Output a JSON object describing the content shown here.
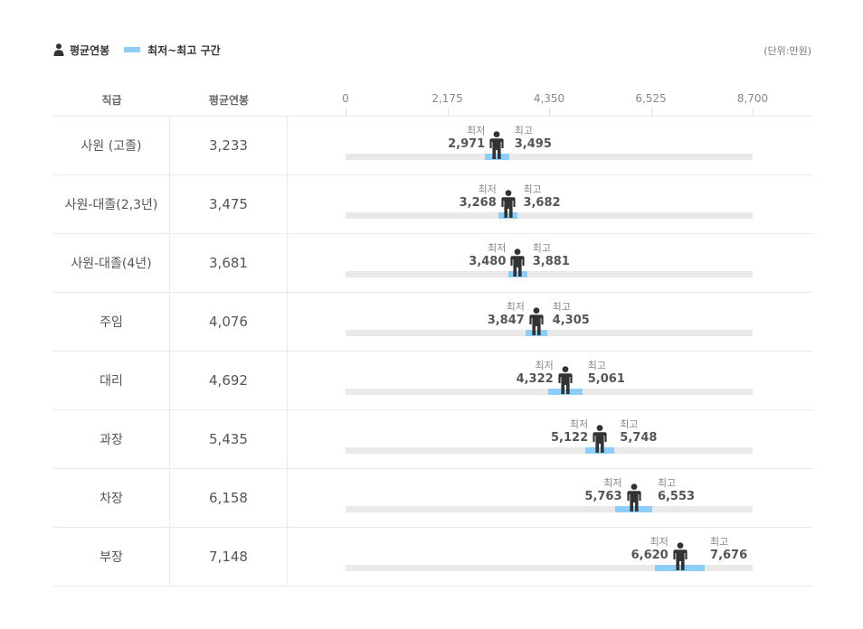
{
  "legend": {
    "average_label": "평균연봉",
    "range_label": "최저~최고 구간",
    "unit": "(단위:만원)"
  },
  "headers": {
    "grade": "직급",
    "avg": "평균연봉"
  },
  "labels": {
    "min": "최저",
    "max": "최고"
  },
  "colors": {
    "range": "#8dcdf7",
    "track": "#e9e9e9",
    "figure": "#333333"
  },
  "chart_data": {
    "type": "table",
    "xlim": [
      0,
      8700
    ],
    "ticks": [
      "0",
      "2,175",
      "4,350",
      "6,525",
      "8,700"
    ],
    "tick_values": [
      0,
      2175,
      4350,
      6525,
      8700
    ],
    "rows": [
      {
        "grade": "사원 (고졸)",
        "avg": 3233,
        "avg_label": "3,233",
        "min": 2971,
        "min_label": "2,971",
        "max": 3495,
        "max_label": "3,495"
      },
      {
        "grade": "사원-대졸(2,3년)",
        "avg": 3475,
        "avg_label": "3,475",
        "min": 3268,
        "min_label": "3,268",
        "max": 3682,
        "max_label": "3,682"
      },
      {
        "grade": "사원-대졸(4년)",
        "avg": 3681,
        "avg_label": "3,681",
        "min": 3480,
        "min_label": "3,480",
        "max": 3881,
        "max_label": "3,881"
      },
      {
        "grade": "주임",
        "avg": 4076,
        "avg_label": "4,076",
        "min": 3847,
        "min_label": "3,847",
        "max": 4305,
        "max_label": "4,305"
      },
      {
        "grade": "대리",
        "avg": 4692,
        "avg_label": "4,692",
        "min": 4322,
        "min_label": "4,322",
        "max": 5061,
        "max_label": "5,061"
      },
      {
        "grade": "과장",
        "avg": 5435,
        "avg_label": "5,435",
        "min": 5122,
        "min_label": "5,122",
        "max": 5748,
        "max_label": "5,748"
      },
      {
        "grade": "차장",
        "avg": 6158,
        "avg_label": "6,158",
        "min": 5763,
        "min_label": "5,763",
        "max": 6553,
        "max_label": "6,553"
      },
      {
        "grade": "부장",
        "avg": 7148,
        "avg_label": "7,148",
        "min": 6620,
        "min_label": "6,620",
        "max": 7676,
        "max_label": "7,676"
      }
    ]
  }
}
